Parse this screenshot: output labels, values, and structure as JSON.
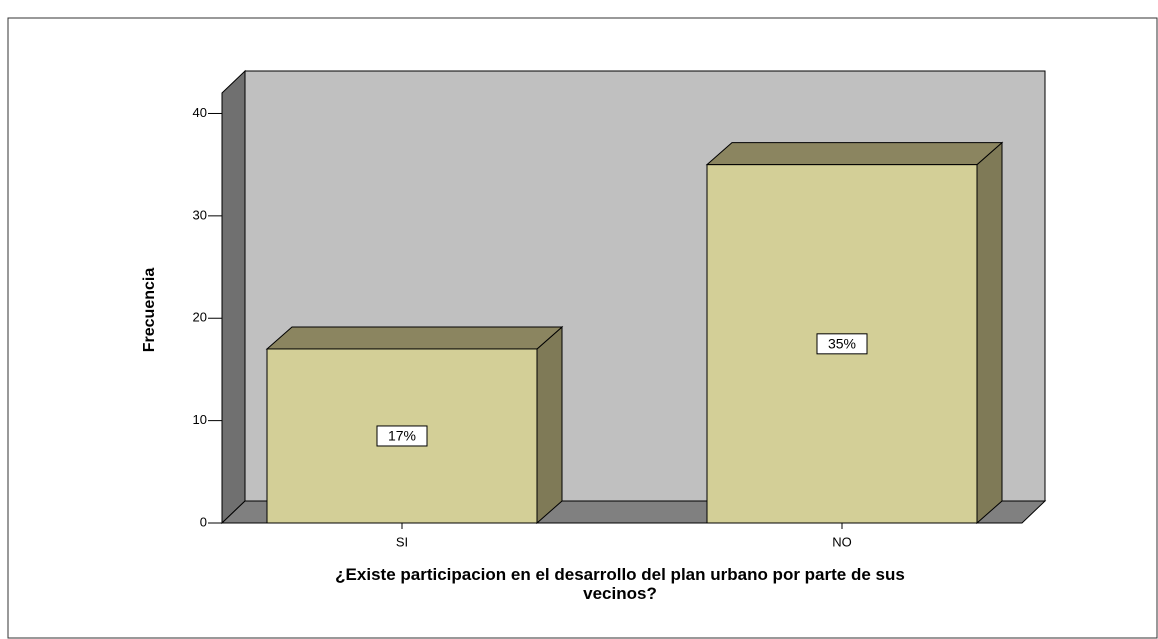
{
  "chart_data": {
    "type": "bar3d",
    "categories": [
      "SI",
      "NO"
    ],
    "values": [
      17,
      35
    ],
    "value_labels": [
      "17%",
      "35%"
    ],
    "color": "#d3cf97",
    "ylabel": "Frecuencia",
    "xlabel": "¿Existe participacion en el desarrollo del plan urbano por parte de sus vecinos?",
    "ylim": [
      0,
      42
    ],
    "yticks": [
      0,
      10,
      20,
      30,
      40
    ]
  }
}
